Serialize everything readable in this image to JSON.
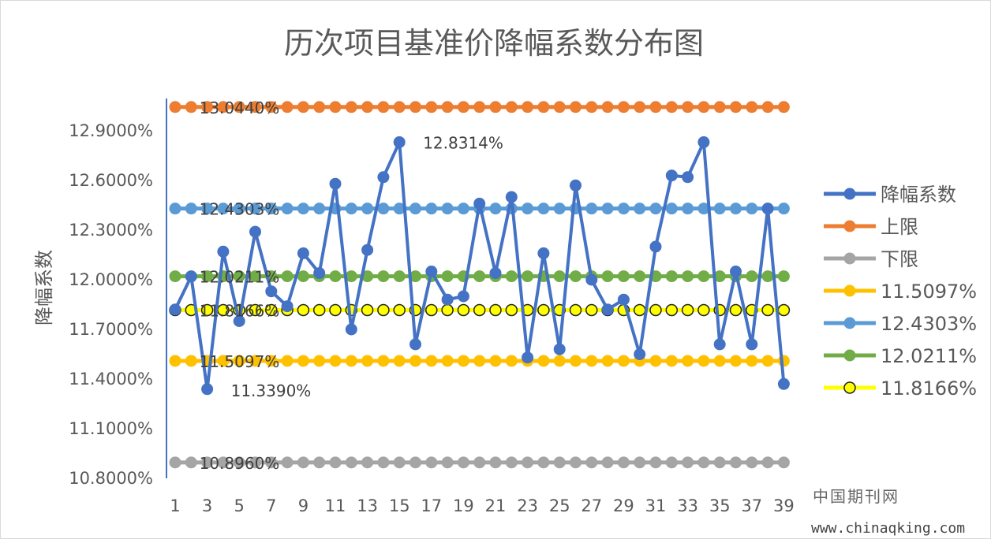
{
  "chart_data": {
    "type": "line",
    "title": "历次项目基准价降幅系数分布图",
    "ylabel": "降幅系数",
    "xlabel": "",
    "ylim": [
      10.8,
      13.0
    ],
    "y_tick_values": [
      10.8,
      11.1,
      11.4,
      11.7,
      12.0,
      12.3,
      12.6,
      12.9
    ],
    "y_tick_labels": [
      "10.8000%",
      "11.1000%",
      "11.4000%",
      "11.7000%",
      "12.0000%",
      "12.3000%",
      "12.6000%",
      "12.9000%"
    ],
    "x_tick_labels": [
      "1",
      "3",
      "5",
      "7",
      "9",
      "11",
      "13",
      "15",
      "17",
      "19",
      "21",
      "23",
      "25",
      "27",
      "29",
      "31",
      "33",
      "35",
      "37",
      "39"
    ],
    "legend_position": "right",
    "series": [
      {
        "name": "降幅系数",
        "color": "#4472C4",
        "marker": "filled",
        "values": [
          11.82,
          12.02,
          11.339,
          12.17,
          11.75,
          12.29,
          11.93,
          11.84,
          12.16,
          12.04,
          12.58,
          11.7,
          12.18,
          12.62,
          12.8314,
          11.61,
          12.05,
          11.88,
          11.9,
          12.46,
          12.04,
          12.5,
          11.53,
          12.16,
          11.58,
          12.57,
          12.0,
          11.82,
          11.88,
          11.55,
          12.2,
          12.63,
          12.62,
          12.8314,
          11.61,
          12.05,
          11.61,
          12.43,
          11.37
        ]
      },
      {
        "name": "上限",
        "color": "#ED7D31",
        "marker": "filled",
        "constant": 13.044
      },
      {
        "name": "下限",
        "color": "#A5A5A5",
        "marker": "filled",
        "constant": 10.896
      },
      {
        "name": "11.5097%",
        "color": "#FFC000",
        "marker": "filled",
        "constant": 11.5097
      },
      {
        "name": "12.4303%",
        "color": "#5B9BD5",
        "marker": "filled",
        "constant": 12.4303
      },
      {
        "name": "12.0211%",
        "color": "#70AD47",
        "marker": "filled",
        "constant": 12.0211
      },
      {
        "name": "11.8166%",
        "color": "#FFFF00",
        "marker": "hollow",
        "constant": 11.8166
      }
    ],
    "annotations": [
      {
        "text": "13.0440%",
        "x": 3,
        "y": 13.044
      },
      {
        "text": "12.8314%",
        "x": 15,
        "y": 12.8314
      },
      {
        "text": "12.4303%",
        "x": 3,
        "y": 12.4303
      },
      {
        "text": "12.0211%",
        "x": 3,
        "y": 12.0211
      },
      {
        "text": "11.8166%",
        "x": 3,
        "y": 11.8166
      },
      {
        "text": "11.5097%",
        "x": 3,
        "y": 11.5097
      },
      {
        "text": "11.3390%",
        "x": 3,
        "y": 11.339
      },
      {
        "text": "10.8960%",
        "x": 3,
        "y": 10.896
      }
    ]
  },
  "watermark": {
    "line1": "中国期刊网",
    "line2": "www.chinaqking.com"
  }
}
